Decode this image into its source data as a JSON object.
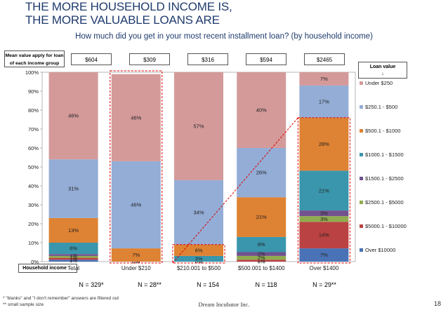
{
  "title_line1": "THE MORE HOUSEHOLD INCOME IS,",
  "title_line2": "THE MORE VALUABLE LOANS ARE",
  "subtitle": "How much did you get in your most recent installment loan? (by household income)",
  "mean_label": "Mean value apply for loan of each income group",
  "mean_values": [
    "$604",
    "$309",
    "$316",
    "$594",
    "$2465"
  ],
  "loan_value_label": "Loan value",
  "loan_value_arrow": "↓",
  "household_label": "Household income →",
  "n_labels": [
    "N = 329*",
    "N = 28**",
    "N = 154",
    "N = 118",
    "N = 29**"
  ],
  "footnote1": "* \"blanks\" and \"I don't remember\" answers are filtered out",
  "footnote2": "** small sample size",
  "company": "Dream Incubator Inc.",
  "page_number": "18",
  "colors": {
    "over10000": "#4a72b6",
    "5000_10000": "#bb4242",
    "2500_5000": "#90ac4e",
    "1500_2500": "#72528e",
    "1000_1500": "#3a96ac",
    "500_1000": "#de8233",
    "250_500": "#93add6",
    "under250": "#d49a9a",
    "highlight": "#e00000",
    "title": "#1f3b6e"
  },
  "chart_data": {
    "type": "bar",
    "stacked": true,
    "percent": true,
    "categories": [
      "Total",
      "Under $210",
      "$210.001 to $500",
      "$500.001 to $1400",
      "Over $1400"
    ],
    "ylim": [
      0,
      100
    ],
    "yticks": [
      "0%",
      "10%",
      "20%",
      "30%",
      "40%",
      "50%",
      "60%",
      "70%",
      "80%",
      "90%",
      "100%"
    ],
    "legend_position": "right",
    "series": [
      {
        "name": "Over $10000",
        "values": [
          1,
          0,
          0,
          0,
          7
        ],
        "labels": [
          "1%",
          "0%",
          "0%",
          "0%",
          "7%"
        ]
      },
      {
        "name": "$5000.1 - $10000",
        "values": [
          1,
          0,
          0,
          1,
          14
        ],
        "labels": [
          "1%",
          "0%",
          "0%",
          "1%",
          "14%"
        ]
      },
      {
        "name": "$2500.1 - $5000",
        "values": [
          1,
          0,
          0,
          2,
          3
        ],
        "labels": [
          "1%",
          "0%",
          "0%",
          "2%",
          "3%"
        ]
      },
      {
        "name": "$1500.1 - $2500",
        "values": [
          1,
          0,
          0,
          2,
          3
        ],
        "labels": [
          "1%",
          "0%",
          "0%",
          "2%",
          "3%"
        ]
      },
      {
        "name": "$1000.1 - $1500",
        "values": [
          6,
          0,
          3,
          8,
          21
        ],
        "labels": [
          "6%",
          "0%",
          "3%",
          "8%",
          "21%"
        ]
      },
      {
        "name": "$500.1 - $1000",
        "values": [
          13,
          7,
          6,
          21,
          28
        ],
        "labels": [
          "13%",
          "7%",
          "6%",
          "21%",
          "28%"
        ]
      },
      {
        "name": "$250.1 - $500",
        "values": [
          31,
          46,
          34,
          26,
          17
        ],
        "labels": [
          "31%",
          "46%",
          "34%",
          "26%",
          "17%"
        ]
      },
      {
        "name": "Under $250",
        "values": [
          46,
          46,
          57,
          40,
          7
        ],
        "labels": [
          "46%",
          "46%",
          "57%",
          "40%",
          "7%"
        ]
      }
    ]
  }
}
